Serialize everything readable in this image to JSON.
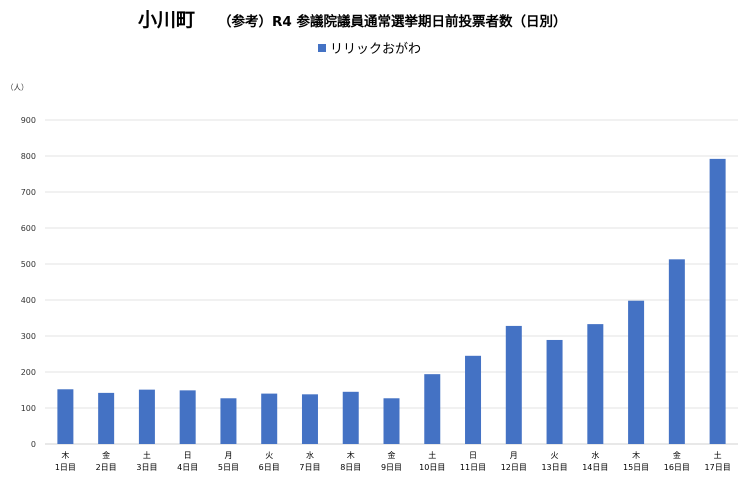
{
  "chart_data": {
    "type": "bar",
    "title": "小川町",
    "subtitle": "（参考）R4 参議院議員通常選挙期日前投票者数（日別）",
    "ylabel": "（人）",
    "xlabel": "",
    "ylim": [
      0,
      900
    ],
    "yticks": [
      0,
      100,
      200,
      300,
      400,
      500,
      600,
      700,
      800,
      900
    ],
    "grid": true,
    "legend_position": "top-center",
    "categories": [
      {
        "weekday": "木",
        "day": "1日目"
      },
      {
        "weekday": "金",
        "day": "2日目"
      },
      {
        "weekday": "土",
        "day": "3日目"
      },
      {
        "weekday": "日",
        "day": "4日目"
      },
      {
        "weekday": "月",
        "day": "5日目"
      },
      {
        "weekday": "火",
        "day": "6日目"
      },
      {
        "weekday": "水",
        "day": "7日目"
      },
      {
        "weekday": "木",
        "day": "8日目"
      },
      {
        "weekday": "金",
        "day": "9日目"
      },
      {
        "weekday": "土",
        "day": "10日目"
      },
      {
        "weekday": "日",
        "day": "11日目"
      },
      {
        "weekday": "月",
        "day": "12日目"
      },
      {
        "weekday": "火",
        "day": "13日目"
      },
      {
        "weekday": "水",
        "day": "14日目"
      },
      {
        "weekday": "木",
        "day": "15日目"
      },
      {
        "weekday": "金",
        "day": "16日目"
      },
      {
        "weekday": "土",
        "day": "17日目"
      }
    ],
    "series": [
      {
        "name": "リリックおがわ",
        "color": "#4472c4",
        "values": [
          152,
          142,
          151,
          149,
          127,
          140,
          138,
          145,
          127,
          194,
          245,
          328,
          289,
          333,
          398,
          513,
          792
        ]
      }
    ]
  }
}
